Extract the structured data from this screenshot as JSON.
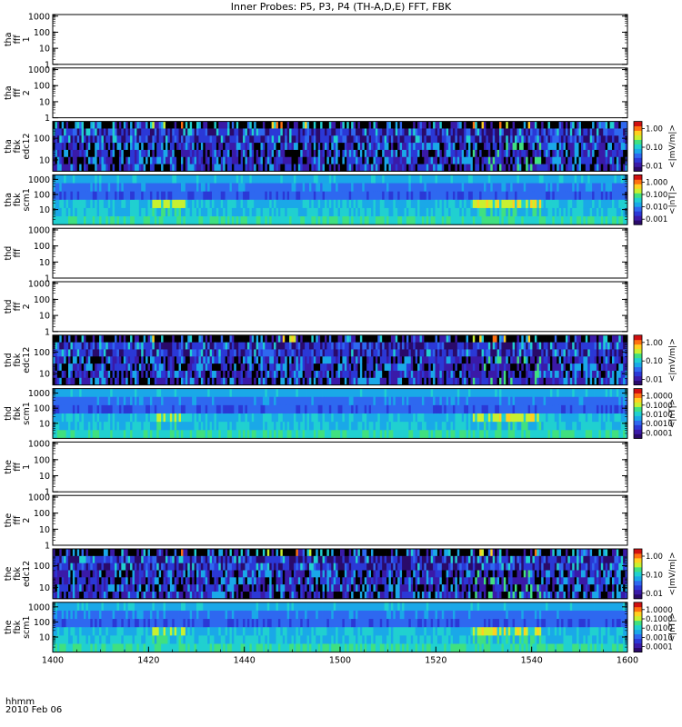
{
  "title": "Inner Probes: P5, P3, P4 (TH-A,D,E) FFT, FBK",
  "colors": {
    "background": "#ffffff",
    "axis": "#000000",
    "colorscale": [
      "#000000",
      "#2a0a6a",
      "#3a1aa8",
      "#2b38d6",
      "#2e68f0",
      "#1aa8e8",
      "#20d0d0",
      "#40e080",
      "#c8f030",
      "#ffd020",
      "#ff7010",
      "#d01010"
    ]
  },
  "chart_data": [
    {
      "type": "heatmap",
      "panel": "tha-fff-1",
      "ylabel": [
        "tha",
        "fff",
        "1"
      ],
      "y_ticks": [
        "1000",
        "100",
        "10",
        "1"
      ],
      "log_y": true,
      "empty": true
    },
    {
      "type": "heatmap",
      "panel": "tha-fff-2",
      "ylabel": [
        "tha",
        "fff",
        "2"
      ],
      "y_ticks": [
        "1000",
        "100",
        "10",
        "1"
      ],
      "log_y": true,
      "empty": true
    },
    {
      "type": "heatmap",
      "panel": "tha-fbk-edc12",
      "ylabel": [
        "tha",
        "fbk",
        "edc12"
      ],
      "y_ticks": [
        "100",
        "10"
      ],
      "log_y": true,
      "cmap": "efield",
      "colorbar": {
        "label": "<|mV/m|>",
        "ticks": [
          "1.00",
          "0.10",
          "0.01"
        ],
        "log": true
      }
    },
    {
      "type": "heatmap",
      "panel": "tha-fbk-scm1",
      "ylabel": [
        "tha",
        "fbk",
        "scm1"
      ],
      "y_ticks": [
        "1000",
        "100",
        "10"
      ],
      "log_y": true,
      "cmap": "bfield",
      "colorbar": {
        "label": "<|nT|>",
        "ticks": [
          "1.000",
          "0.100",
          "0.010",
          "0.001"
        ],
        "log": true
      }
    },
    {
      "type": "heatmap",
      "panel": "thd-fff",
      "ylabel": [
        "thd",
        "fff"
      ],
      "y_ticks": [
        "1000",
        "100",
        "10",
        "1"
      ],
      "log_y": true,
      "empty": true
    },
    {
      "type": "heatmap",
      "panel": "thd-fff-2",
      "ylabel": [
        "thd",
        "fff",
        "2"
      ],
      "y_ticks": [
        "1000",
        "100",
        "10",
        "1"
      ],
      "log_y": true,
      "empty": true
    },
    {
      "type": "heatmap",
      "panel": "thd-fbk-edc12",
      "ylabel": [
        "thd",
        "fbk",
        "edc12"
      ],
      "y_ticks": [
        "100",
        "10"
      ],
      "log_y": true,
      "cmap": "efield",
      "colorbar": {
        "label": "<|mV/m|>",
        "ticks": [
          "1.00",
          "0.10",
          "0.01"
        ],
        "log": true
      }
    },
    {
      "type": "heatmap",
      "panel": "thd-fbk-scm1",
      "ylabel": [
        "thd",
        "fbk",
        "scm1"
      ],
      "y_ticks": [
        "1000",
        "100",
        "10"
      ],
      "log_y": true,
      "cmap": "bfield",
      "colorbar": {
        "label": "<|nT|>",
        "ticks": [
          "1.0000",
          "0.1000",
          "0.0100",
          "0.0010",
          "0.0001"
        ],
        "log": true
      }
    },
    {
      "type": "heatmap",
      "panel": "the-fff-1",
      "ylabel": [
        "the",
        "fff",
        "1"
      ],
      "y_ticks": [
        "1000",
        "100",
        "10",
        "1"
      ],
      "log_y": true,
      "empty": true
    },
    {
      "type": "heatmap",
      "panel": "the-fff-2",
      "ylabel": [
        "the",
        "fff",
        "2"
      ],
      "y_ticks": [
        "1000",
        "100",
        "10",
        "1"
      ],
      "log_y": true,
      "empty": true
    },
    {
      "type": "heatmap",
      "panel": "the-fbk-edc12",
      "ylabel": [
        "the",
        "fbk",
        "edc12"
      ],
      "y_ticks": [
        "100",
        "10"
      ],
      "log_y": true,
      "cmap": "efield",
      "colorbar": {
        "label": "<|mV/m|>",
        "ticks": [
          "1.00",
          "0.10",
          "0.01"
        ],
        "log": true
      }
    },
    {
      "type": "heatmap",
      "panel": "the-fbk-scm1",
      "ylabel": [
        "the",
        "fbk",
        "scm1"
      ],
      "y_ticks": [
        "1000",
        "100",
        "10"
      ],
      "log_y": true,
      "cmap": "bfield",
      "colorbar": {
        "label": "<|nT|>",
        "ticks": [
          "1.0000",
          "0.1000",
          "0.0100",
          "0.0010",
          "0.0001"
        ],
        "log": true
      }
    }
  ],
  "x_axis": {
    "ticks": [
      "1400",
      "1420",
      "1440",
      "1500",
      "1520",
      "1540",
      "1600"
    ],
    "label_line1": "hhmm",
    "label_line2": "2010 Feb 06",
    "range": [
      "14:00",
      "16:00"
    ]
  }
}
